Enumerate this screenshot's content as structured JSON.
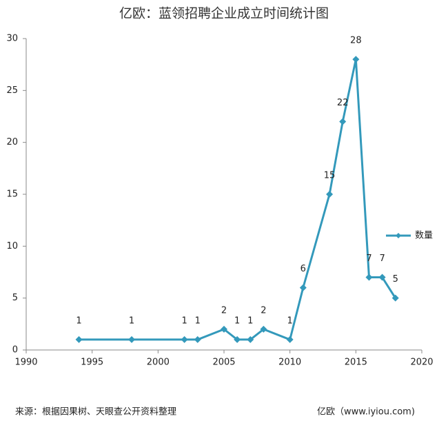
{
  "chart_data": {
    "type": "line",
    "title": "亿欧：蓝领招聘企业成立时间统计图",
    "x": [
      1994,
      1998,
      2002,
      2003,
      2005,
      2006,
      2007,
      2008,
      2010,
      2011,
      2013,
      2014,
      2015,
      2016,
      2017,
      2018
    ],
    "series": [
      {
        "name": "数量",
        "color": "#3399bb",
        "values": [
          1,
          1,
          1,
          1,
          2,
          1,
          1,
          2,
          1,
          6,
          15,
          22,
          28,
          7,
          7,
          5
        ]
      }
    ],
    "xlim": [
      1990,
      2020
    ],
    "xticks": [
      1990,
      1995,
      2000,
      2005,
      2010,
      2015,
      2020
    ],
    "ylim": [
      0,
      30
    ],
    "yticks": [
      0,
      5,
      10,
      15,
      20,
      25,
      30
    ],
    "grid": false,
    "legend": "right",
    "source": "来源：根据因果树、天眼查公开资料整理",
    "credit": "亿欧（www.iyiou.com)"
  }
}
